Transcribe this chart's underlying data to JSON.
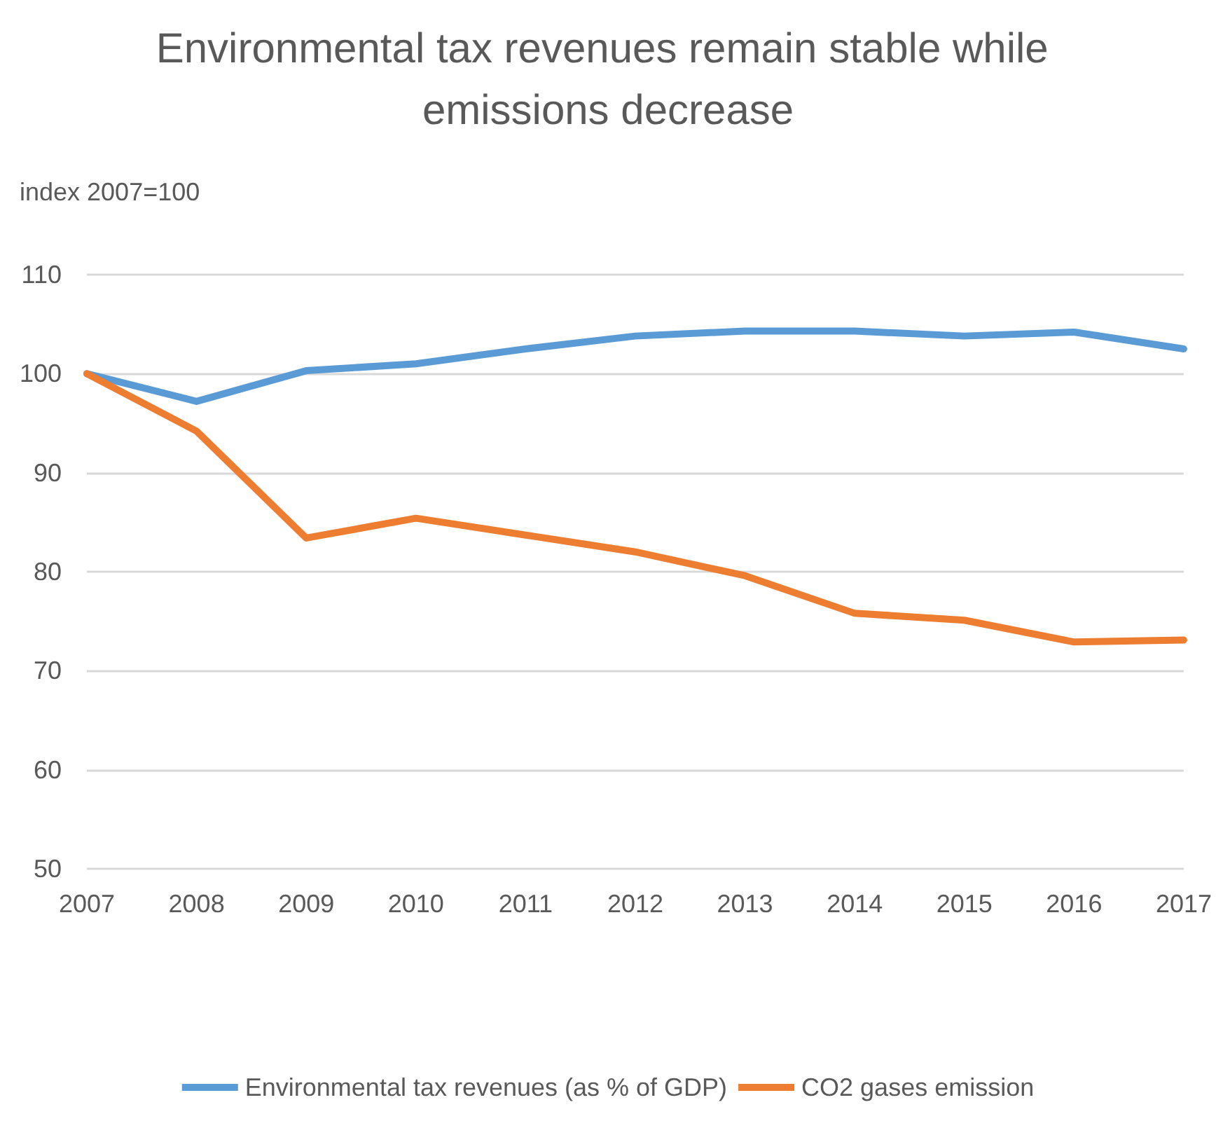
{
  "chart_data": {
    "type": "line",
    "title": "Environmental tax revenues remain stable while emissions decrease",
    "ylabel": "index 2007=100",
    "categories": [
      "2007",
      "2008",
      "2009",
      "2010",
      "2011",
      "2012",
      "2013",
      "2014",
      "2015",
      "2016",
      "2017"
    ],
    "series": [
      {
        "name": "Environmental tax revenues (as % of GDP)",
        "color": "#5b9bd5",
        "values": [
          100,
          97.2,
          100.3,
          101,
          102.5,
          103.8,
          104.3,
          104.3,
          103.8,
          104.2,
          102.5
        ]
      },
      {
        "name": "CO2 gases emission",
        "color": "#ed7d31",
        "values": [
          100,
          94.2,
          83.4,
          85.4,
          83.7,
          82,
          79.6,
          75.8,
          75.1,
          72.9,
          73.1
        ]
      }
    ],
    "ylim": [
      50,
      110
    ],
    "yticks": [
      50,
      60,
      70,
      80,
      90,
      100,
      110
    ],
    "grid": "y",
    "legend": "bottom",
    "marker": "none",
    "line_style": "solid"
  }
}
